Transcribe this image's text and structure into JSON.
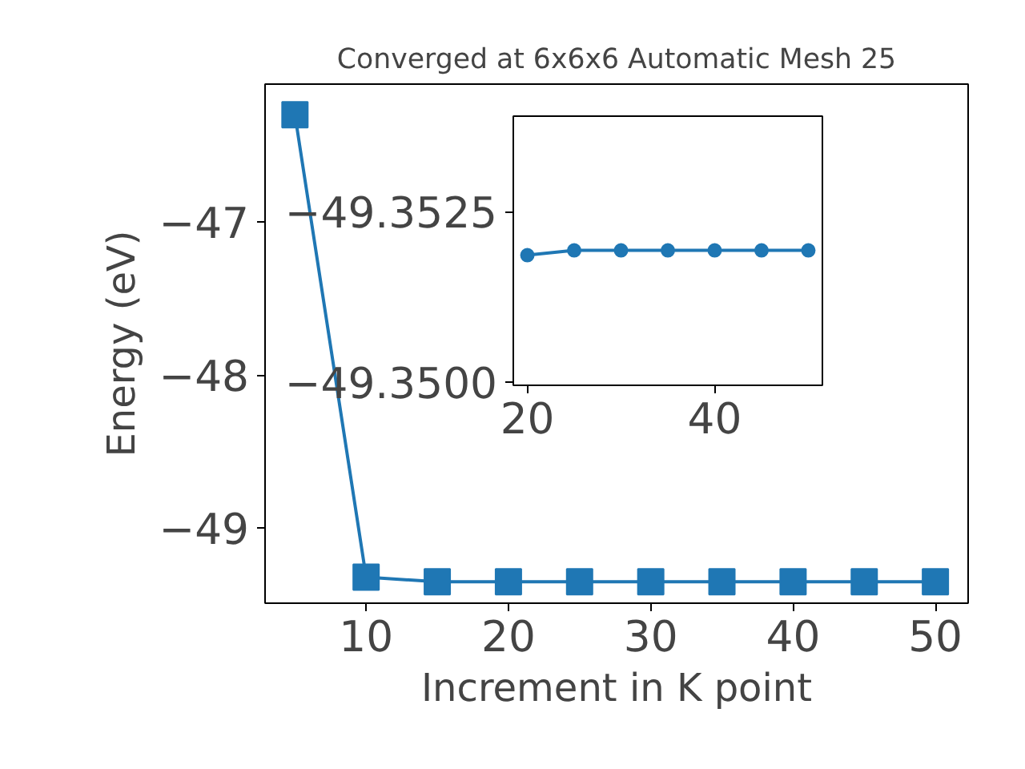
{
  "chart_data": [
    {
      "type": "line",
      "title": "Converged at 6x6x6 Automatic Mesh 25",
      "xlabel": "Increment in K point",
      "ylabel": "Energy (eV)",
      "marker": "square",
      "line_style": "solid",
      "grid": false,
      "x": [
        5,
        10,
        15,
        20,
        25,
        30,
        35,
        40,
        45,
        50
      ],
      "series": [
        {
          "color": "#1f77b4",
          "values": [
            -46.3,
            -49.32,
            -49.35,
            -49.35,
            -49.35,
            -49.35,
            -49.35,
            -49.35,
            -49.35,
            -49.35
          ]
        }
      ],
      "xlim": [
        2.9,
        52.3
      ],
      "ylim": [
        -49.49,
        -46.1
      ],
      "xticks": [
        10,
        20,
        30,
        40,
        50
      ],
      "yticks": [
        {
          "value": -49,
          "label": "−49"
        },
        {
          "value": -48,
          "label": "−48"
        },
        {
          "value": -47,
          "label": "−47"
        }
      ]
    },
    {
      "type": "line",
      "marker": "circle",
      "line_style": "solid",
      "grid": false,
      "x": [
        20,
        25,
        30,
        35,
        40,
        45,
        50
      ],
      "series": [
        {
          "color": "#1f77b4",
          "values": [
            -49.35186,
            -49.35193,
            -49.35193,
            -49.35193,
            -49.35193,
            -49.35193,
            -49.35193
          ]
        }
      ],
      "xlim": [
        18.5,
        51.5
      ],
      "ylim": [
        -49.34995,
        -49.3539
      ],
      "xticks": [
        20,
        40
      ],
      "yticks": [
        {
          "value": -49.35,
          "label": "−49.3500"
        },
        {
          "value": -49.3525,
          "label": "−49.3525"
        }
      ]
    }
  ]
}
